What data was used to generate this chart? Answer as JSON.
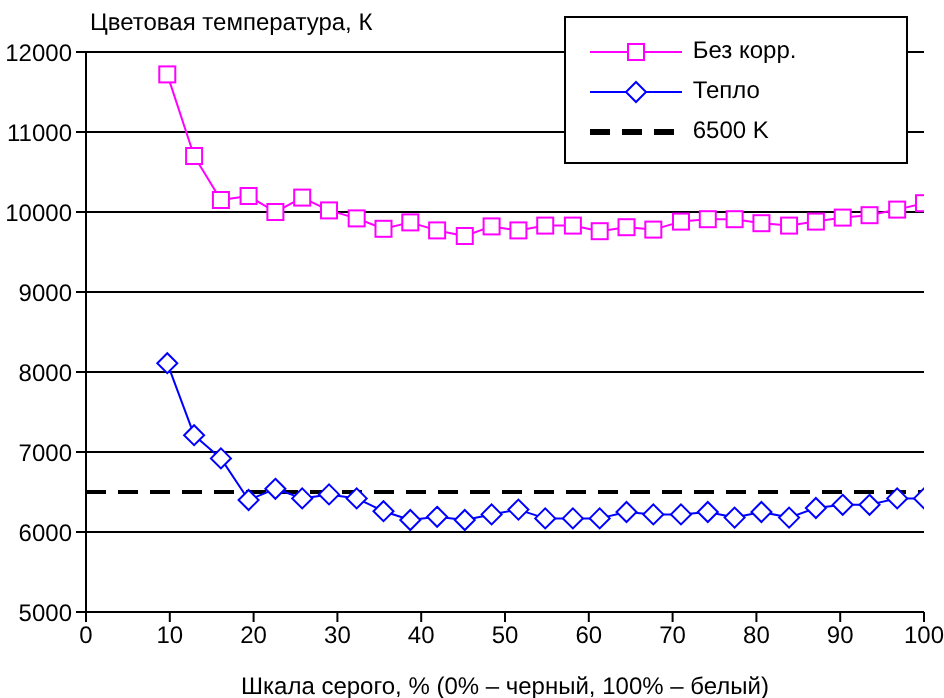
{
  "chart_data": {
    "type": "line",
    "ylabel": "Цветовая температура, К",
    "xlabel": "Шкала серого, % (0% – черный, 100% – белый)",
    "x": [
      9.7,
      12.9,
      16.1,
      19.4,
      22.6,
      25.8,
      29,
      32.3,
      35.5,
      38.7,
      41.9,
      45.2,
      48.4,
      51.6,
      54.8,
      58.1,
      61.3,
      64.5,
      67.7,
      71,
      74.2,
      77.4,
      80.6,
      83.9,
      87.1,
      90.3,
      93.5,
      96.8,
      100
    ],
    "series": [
      {
        "name": "Без корр.",
        "color": "#ff00ff",
        "marker": "square",
        "values": [
          11720,
          10700,
          10150,
          10200,
          10000,
          10180,
          10020,
          9920,
          9790,
          9870,
          9770,
          9700,
          9820,
          9770,
          9830,
          9830,
          9760,
          9810,
          9780,
          9880,
          9910,
          9910,
          9860,
          9830,
          9880,
          9930,
          9960,
          10030,
          10110
        ]
      },
      {
        "name": "Тепло",
        "color": "#0000ff",
        "marker": "diamond",
        "values": [
          8110,
          7210,
          6920,
          6400,
          6540,
          6420,
          6470,
          6420,
          6260,
          6150,
          6190,
          6150,
          6220,
          6280,
          6170,
          6170,
          6170,
          6250,
          6220,
          6220,
          6250,
          6180,
          6250,
          6180,
          6300,
          6340,
          6340,
          6420,
          6420
        ]
      }
    ],
    "ref_lines": [
      {
        "axis": "y",
        "value": 6500,
        "label": "6500 K",
        "color": "#000000",
        "line_style": "dashed"
      }
    ],
    "xlim": [
      0,
      100
    ],
    "xticks": [
      0,
      10,
      20,
      30,
      40,
      50,
      60,
      70,
      80,
      90,
      100
    ],
    "ylim": [
      5000,
      12000
    ],
    "yticks": [
      5000,
      6000,
      7000,
      8000,
      9000,
      10000,
      11000,
      12000
    ],
    "grid": "y",
    "legend": "top right"
  }
}
